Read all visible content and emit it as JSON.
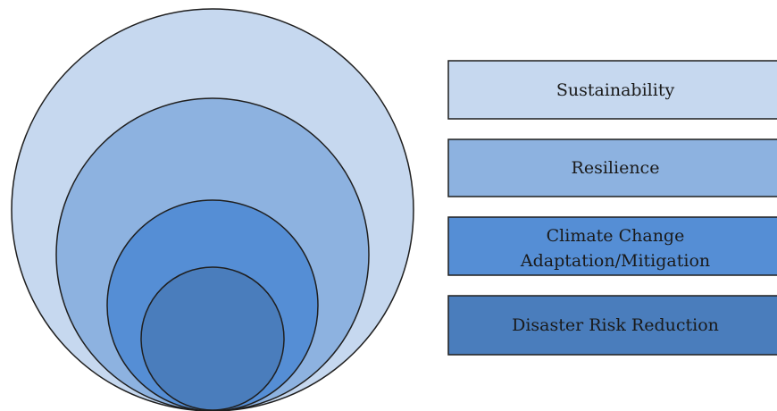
{
  "diagram": {
    "type": "nested-circles-with-legend",
    "levels": [
      {
        "label": "Sustainability",
        "color": "#c6d8ef"
      },
      {
        "label": "Resilience",
        "color": "#8db2e0"
      },
      {
        "label_lines": [
          "Climate Change",
          "Adaptation/Mitigation"
        ],
        "color": "#558ed5"
      },
      {
        "label": "Disaster Risk Reduction",
        "color": "#4a7dbc"
      }
    ],
    "stroke_color": "#1f1f1f"
  }
}
